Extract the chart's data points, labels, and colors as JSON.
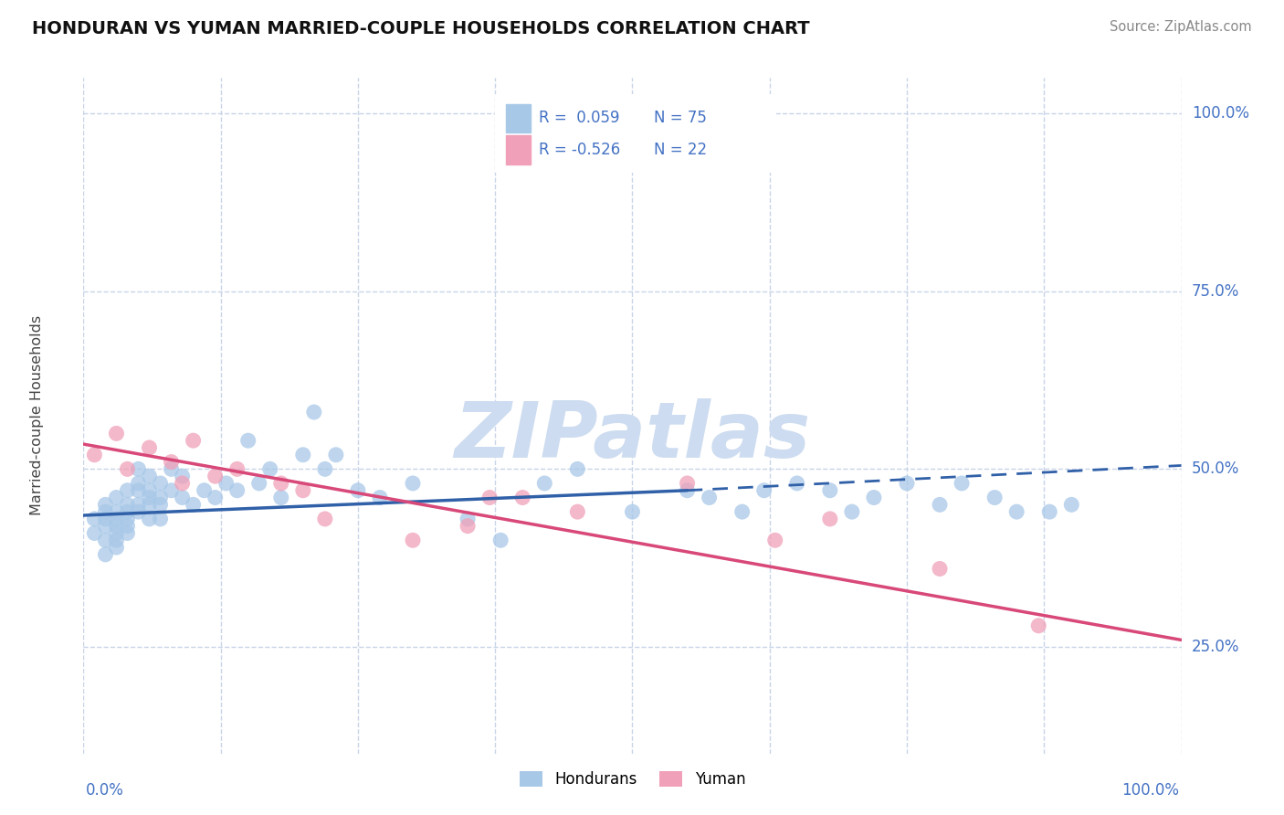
{
  "title": "HONDURAN VS YUMAN MARRIED-COUPLE HOUSEHOLDS CORRELATION CHART",
  "source": "Source: ZipAtlas.com",
  "ylabel": "Married-couple Households",
  "xlim": [
    0,
    100
  ],
  "ylim": [
    10,
    105
  ],
  "xticks": [
    0,
    12.5,
    25,
    37.5,
    50,
    62.5,
    75,
    87.5,
    100
  ],
  "ytick_labels": [
    "25.0%",
    "50.0%",
    "75.0%",
    "100.0%"
  ],
  "ytick_values": [
    25,
    50,
    75,
    100
  ],
  "hondurans_color": "#a8c8e8",
  "yuman_color": "#f0a0b8",
  "hondurans_trend_color": "#3060a8",
  "yuman_trend_color": "#d84878",
  "legend_hondurans_label_r": "R =  0.059",
  "legend_hondurans_label_n": "N = 75",
  "legend_yuman_label_r": "R = -0.526",
  "legend_yuman_label_n": "N = 22",
  "bottom_legend_hondurans": "Hondurans",
  "bottom_legend_yuman": "Yuman",
  "watermark": "ZIPatlas",
  "watermark_color": "#cddcf0",
  "background_color": "#ffffff",
  "grid_color": "#c8d4e8",
  "hondurans_x": [
    1,
    1,
    2,
    2,
    2,
    2,
    2,
    2,
    3,
    3,
    3,
    3,
    3,
    3,
    3,
    4,
    4,
    4,
    4,
    4,
    4,
    5,
    5,
    5,
    5,
    5,
    6,
    6,
    6,
    6,
    6,
    7,
    7,
    7,
    7,
    8,
    8,
    9,
    9,
    10,
    11,
    12,
    13,
    14,
    15,
    16,
    17,
    18,
    20,
    21,
    22,
    23,
    25,
    27,
    30,
    35,
    38,
    42,
    45,
    50,
    55,
    57,
    60,
    62,
    65,
    68,
    70,
    72,
    75,
    78,
    80,
    83,
    85,
    88,
    90
  ],
  "hondurans_y": [
    43,
    41,
    45,
    43,
    42,
    40,
    44,
    38,
    46,
    44,
    43,
    42,
    41,
    40,
    39,
    47,
    45,
    44,
    43,
    42,
    41,
    50,
    48,
    47,
    45,
    44,
    49,
    47,
    46,
    45,
    43,
    48,
    46,
    45,
    43,
    50,
    47,
    49,
    46,
    45,
    47,
    46,
    48,
    47,
    54,
    48,
    50,
    46,
    52,
    58,
    50,
    52,
    47,
    46,
    48,
    43,
    40,
    48,
    50,
    44,
    47,
    46,
    44,
    47,
    48,
    47,
    44,
    46,
    48,
    45,
    48,
    46,
    44,
    44,
    45
  ],
  "yuman_x": [
    1,
    3,
    4,
    6,
    8,
    9,
    10,
    12,
    14,
    18,
    20,
    22,
    30,
    35,
    37,
    40,
    45,
    55,
    63,
    68,
    78,
    87
  ],
  "yuman_y": [
    52,
    55,
    50,
    53,
    51,
    48,
    54,
    49,
    50,
    48,
    47,
    43,
    40,
    42,
    46,
    46,
    44,
    48,
    40,
    43,
    36,
    28
  ],
  "blue_line_x0": 0,
  "blue_line_x1": 55,
  "blue_line_y0": 43.5,
  "blue_line_y1": 47.0,
  "blue_dash_x0": 55,
  "blue_dash_x1": 100,
  "blue_dash_y0": 47.0,
  "blue_dash_y1": 50.5,
  "pink_line_x0": 0,
  "pink_line_x1": 100,
  "pink_line_y0": 53.5,
  "pink_line_y1": 26.0
}
